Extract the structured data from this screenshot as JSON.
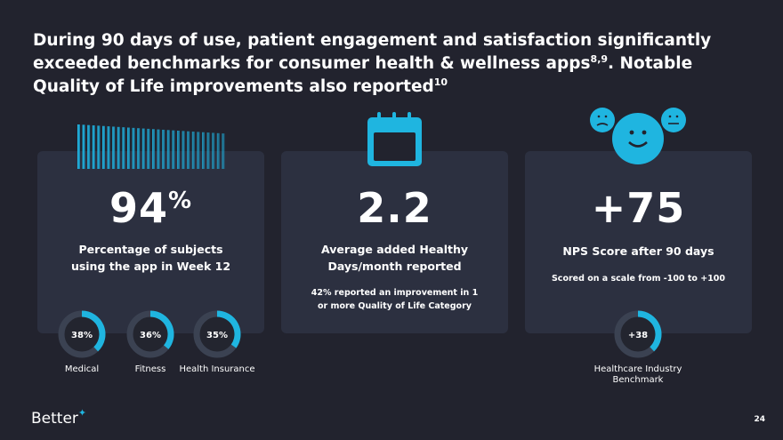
{
  "title": {
    "text": "During 90 days of use, patient engagement and satisfaction significantly exceeded benchmarks for consumer health & wellness apps",
    "sup1": "8,9",
    "text2": ". Notable Quality of Life improvements also reported",
    "sup2": "10"
  },
  "cards": [
    {
      "value": "94",
      "unit": "%",
      "label": "Percentage of subjects using the app in Week 12",
      "donuts": [
        {
          "value": 38,
          "label": "38%",
          "caption": "Medical"
        },
        {
          "value": 36,
          "label": "36%",
          "caption": "Fitness"
        },
        {
          "value": 35,
          "label": "35%",
          "caption": "Health Insurance"
        }
      ]
    },
    {
      "value": "2.2",
      "label": "Average added Healthy Days/month reported",
      "note": "42% reported an improvement in 1 or more Quality of Life Category"
    },
    {
      "value": "+75",
      "label": "NPS Score after 90 days",
      "note": "Scored on a scale from -100 to +100",
      "donuts": [
        {
          "value": 38,
          "label": "+38",
          "caption": "Healthcare Industry Benchmark"
        }
      ]
    }
  ],
  "footer": {
    "logo": "Better",
    "page": "24"
  }
}
